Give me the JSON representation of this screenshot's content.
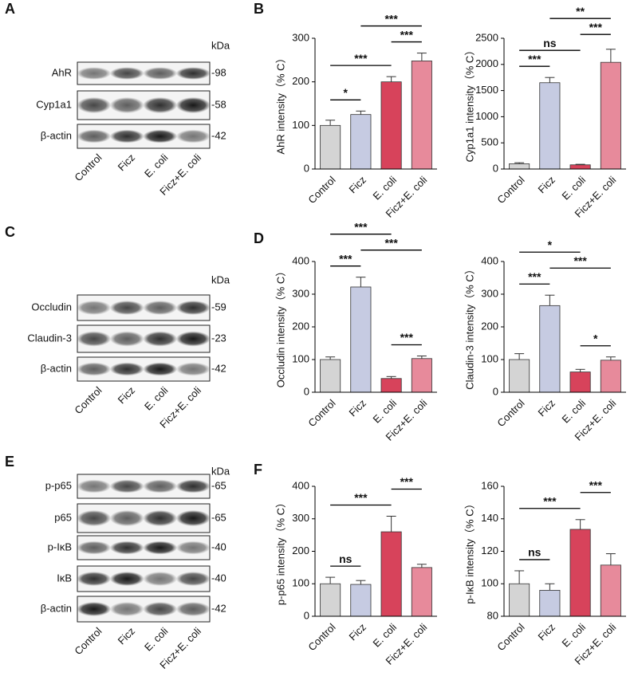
{
  "panel_letters": [
    "A",
    "B",
    "C",
    "D",
    "E",
    "F"
  ],
  "blots": [
    {
      "kda": "kDa",
      "rows": [
        {
          "name": "AhR",
          "marker": "-98"
        },
        {
          "name": "Cyp1a1",
          "marker": "-58"
        },
        {
          "name": "β-actin",
          "marker": "-42"
        }
      ],
      "lanes": [
        "Control",
        "Ficz",
        "E. coli",
        "Ficz+E. coli"
      ]
    },
    {
      "kda": "kDa",
      "rows": [
        {
          "name": "Occludin",
          "marker": "-59"
        },
        {
          "name": "Claudin-3",
          "marker": "-23"
        },
        {
          "name": "β-actin",
          "marker": "-42"
        }
      ],
      "lanes": [
        "Control",
        "Ficz",
        "E. coli",
        "Ficz+E. coli"
      ]
    },
    {
      "kda": "kDa",
      "rows": [
        {
          "name": "p-p65",
          "marker": "-65"
        },
        {
          "name": "p65",
          "marker": "-65"
        },
        {
          "name": "p-IκB",
          "marker": "-40"
        },
        {
          "name": "IκB",
          "marker": "-40"
        },
        {
          "name": "β-actin",
          "marker": "-42"
        }
      ],
      "lanes": [
        "Control",
        "Ficz",
        "E. coli",
        "Ficz+E. coli"
      ]
    }
  ],
  "chart_data": [
    {
      "type": "bar",
      "y_label": "AhR intensity（% C）",
      "categories": [
        "Control",
        "Ficz",
        "E. coli",
        "Ficz+E. coli"
      ],
      "values": [
        100,
        125,
        200,
        248
      ],
      "errors": [
        12,
        8,
        12,
        18
      ],
      "colors": [
        "#d4d4d4",
        "#c6cbe2",
        "#d7435b",
        "#e78a9b"
      ],
      "ylim": [
        0,
        300
      ],
      "yticks": [
        0,
        100,
        200,
        300
      ],
      "comparisons": [
        {
          "label": "*",
          "pair": [
            0,
            1
          ]
        },
        {
          "label": "***",
          "pair": [
            0,
            2
          ]
        },
        {
          "label": "***",
          "pair": [
            2,
            3
          ]
        },
        {
          "label": "***",
          "pair": [
            1,
            3
          ]
        }
      ]
    },
    {
      "type": "bar",
      "y_label": "Cyp1a1 intensity（% C）",
      "categories": [
        "Control",
        "Ficz",
        "E. coli",
        "Ficz+E. coli"
      ],
      "values": [
        100,
        1650,
        80,
        2040
      ],
      "errors": [
        20,
        100,
        10,
        250
      ],
      "colors": [
        "#d4d4d4",
        "#c6cbe2",
        "#d7435b",
        "#e78a9b"
      ],
      "ylim": [
        0,
        2500
      ],
      "yticks": [
        0,
        500,
        1000,
        1500,
        2000,
        2500
      ],
      "comparisons": [
        {
          "label": "***",
          "pair": [
            0,
            1
          ]
        },
        {
          "label": "ns",
          "pair": [
            0,
            2
          ]
        },
        {
          "label": "***",
          "pair": [
            2,
            3
          ]
        },
        {
          "label": "**",
          "pair": [
            1,
            3
          ]
        }
      ]
    },
    {
      "type": "bar",
      "y_label": "Occludin intensity（% C）",
      "categories": [
        "Control",
        "Ficz",
        "E. coli",
        "Ficz+E. coli"
      ],
      "values": [
        100,
        322,
        42,
        103
      ],
      "errors": [
        8,
        30,
        6,
        8
      ],
      "colors": [
        "#d4d4d4",
        "#c6cbe2",
        "#d7435b",
        "#e78a9b"
      ],
      "ylim": [
        0,
        400
      ],
      "yticks": [
        0,
        100,
        200,
        300,
        400
      ],
      "comparisons": [
        {
          "label": "***",
          "pair": [
            2,
            3
          ]
        },
        {
          "label": "***",
          "pair": [
            0,
            1
          ]
        },
        {
          "label": "***",
          "pair": [
            1,
            3
          ]
        },
        {
          "label": "***",
          "pair": [
            0,
            2
          ]
        }
      ]
    },
    {
      "type": "bar",
      "y_label": "Claudin-3 intensity（% C）",
      "categories": [
        "Control",
        "Ficz",
        "E. coli",
        "Ficz+E. coli"
      ],
      "values": [
        100,
        265,
        62,
        98
      ],
      "errors": [
        18,
        32,
        8,
        10
      ],
      "colors": [
        "#d4d4d4",
        "#c6cbe2",
        "#d7435b",
        "#e78a9b"
      ],
      "ylim": [
        0,
        400
      ],
      "yticks": [
        0,
        100,
        200,
        300,
        400
      ],
      "comparisons": [
        {
          "label": "*",
          "pair": [
            2,
            3
          ]
        },
        {
          "label": "***",
          "pair": [
            0,
            1
          ]
        },
        {
          "label": "***",
          "pair": [
            1,
            3
          ]
        },
        {
          "label": "*",
          "pair": [
            0,
            2
          ]
        }
      ]
    },
    {
      "type": "bar",
      "y_label": "p-p65 intensity（% C）",
      "categories": [
        "Control",
        "Ficz",
        "E. coli",
        "Ficz+E. coli"
      ],
      "values": [
        100,
        98,
        260,
        150
      ],
      "errors": [
        20,
        12,
        48,
        10
      ],
      "colors": [
        "#d4d4d4",
        "#c6cbe2",
        "#d7435b",
        "#e78a9b"
      ],
      "ylim": [
        0,
        400
      ],
      "yticks": [
        0,
        100,
        200,
        300,
        400
      ],
      "comparisons": [
        {
          "label": "ns",
          "pair": [
            0,
            1
          ]
        },
        {
          "label": "***",
          "pair": [
            0,
            2
          ]
        },
        {
          "label": "***",
          "pair": [
            2,
            3
          ]
        }
      ]
    },
    {
      "type": "bar",
      "y_label": "p-IκB intensity（% C）",
      "categories": [
        "Control",
        "Ficz",
        "E. coli",
        "Ficz+E. coli"
      ],
      "values": [
        100,
        96,
        133.5,
        111.5
      ],
      "errors": [
        8,
        4,
        6,
        7
      ],
      "colors": [
        "#d4d4d4",
        "#c6cbe2",
        "#d7435b",
        "#e78a9b"
      ],
      "ylim": [
        80,
        160
      ],
      "yticks": [
        80,
        100,
        120,
        140,
        160
      ],
      "comparisons": [
        {
          "label": "ns",
          "pair": [
            0,
            1
          ]
        },
        {
          "label": "***",
          "pair": [
            0,
            2
          ]
        },
        {
          "label": "***",
          "pair": [
            2,
            3
          ]
        }
      ]
    }
  ]
}
